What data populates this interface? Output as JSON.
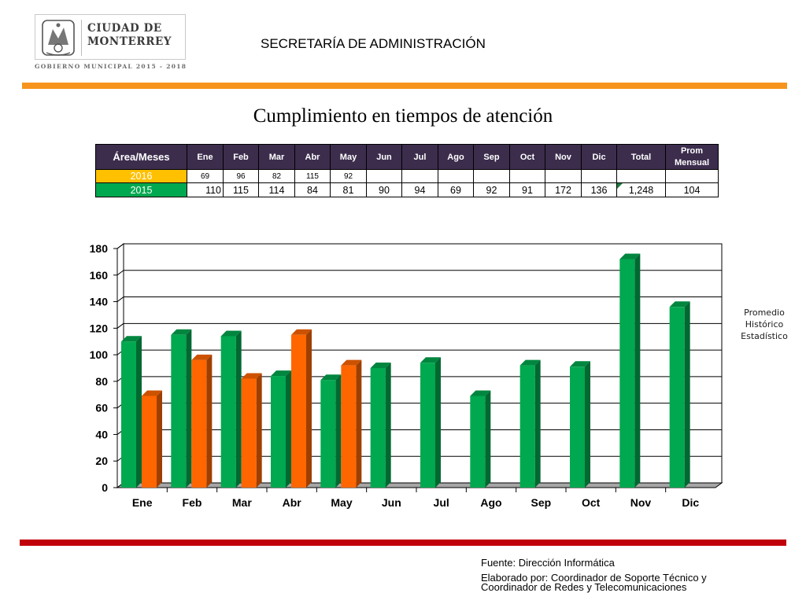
{
  "header": {
    "logo_text": "CIUDAD DE\nMONTERREY",
    "logo_subtitle": "GOBIERNO MUNICIPAL 2015 - 2018",
    "secretaria": "SECRETARÍA DE ADMINISTRACIÓN"
  },
  "title": "Cumplimiento en tiempos de atención",
  "table": {
    "corner": "Área/Meses",
    "columns": [
      "Ene",
      "Feb",
      "Mar",
      "Abr",
      "May",
      "Jun",
      "Jul",
      "Ago",
      "Sep",
      "Oct",
      "Nov",
      "Dic",
      "Total",
      "Prom Mensual"
    ],
    "rows": [
      {
        "label": "2016",
        "cells": [
          "69",
          "96",
          "82",
          "115",
          "92",
          "",
          "",
          "",
          "",
          "",
          "",
          "",
          "",
          ""
        ]
      },
      {
        "label": "2015",
        "cells": [
          "110",
          "115",
          "114",
          "84",
          "81",
          "90",
          "94",
          "69",
          "92",
          "91",
          "172",
          "136",
          "1,248",
          "104"
        ]
      }
    ]
  },
  "chart_data": {
    "type": "bar",
    "categories": [
      "Ene",
      "Feb",
      "Mar",
      "Abr",
      "May",
      "Jun",
      "Jul",
      "Ago",
      "Sep",
      "Oct",
      "Nov",
      "Dic"
    ],
    "series": [
      {
        "color": "#00a84f",
        "values": [
          110,
          115,
          114,
          84,
          81,
          90,
          94,
          69,
          92,
          91,
          172,
          136
        ]
      },
      {
        "color": "#ff6600",
        "values": [
          69,
          96,
          82,
          115,
          92,
          null,
          null,
          null,
          null,
          null,
          null,
          null
        ]
      }
    ],
    "ylim": [
      0,
      180
    ],
    "yticks": [
      0,
      20,
      40,
      60,
      80,
      100,
      120,
      140,
      160,
      180
    ],
    "grid": true,
    "style": "3d-column",
    "legend_label": "Promedio Histórico Estadístico"
  },
  "footer": {
    "source": "Fuente: Dirección  Informática",
    "made_by": "Elaborado por: Coordinador de Soporte Técnico y\nCoordinador de Redes y Telecomunicaciones"
  },
  "colors": {
    "orange_band": "#f7941d",
    "red_band": "#c0000a",
    "table_header": "#3c2d4d",
    "yellow_2016": "#ffc000",
    "green_2015": "#00a84f"
  }
}
